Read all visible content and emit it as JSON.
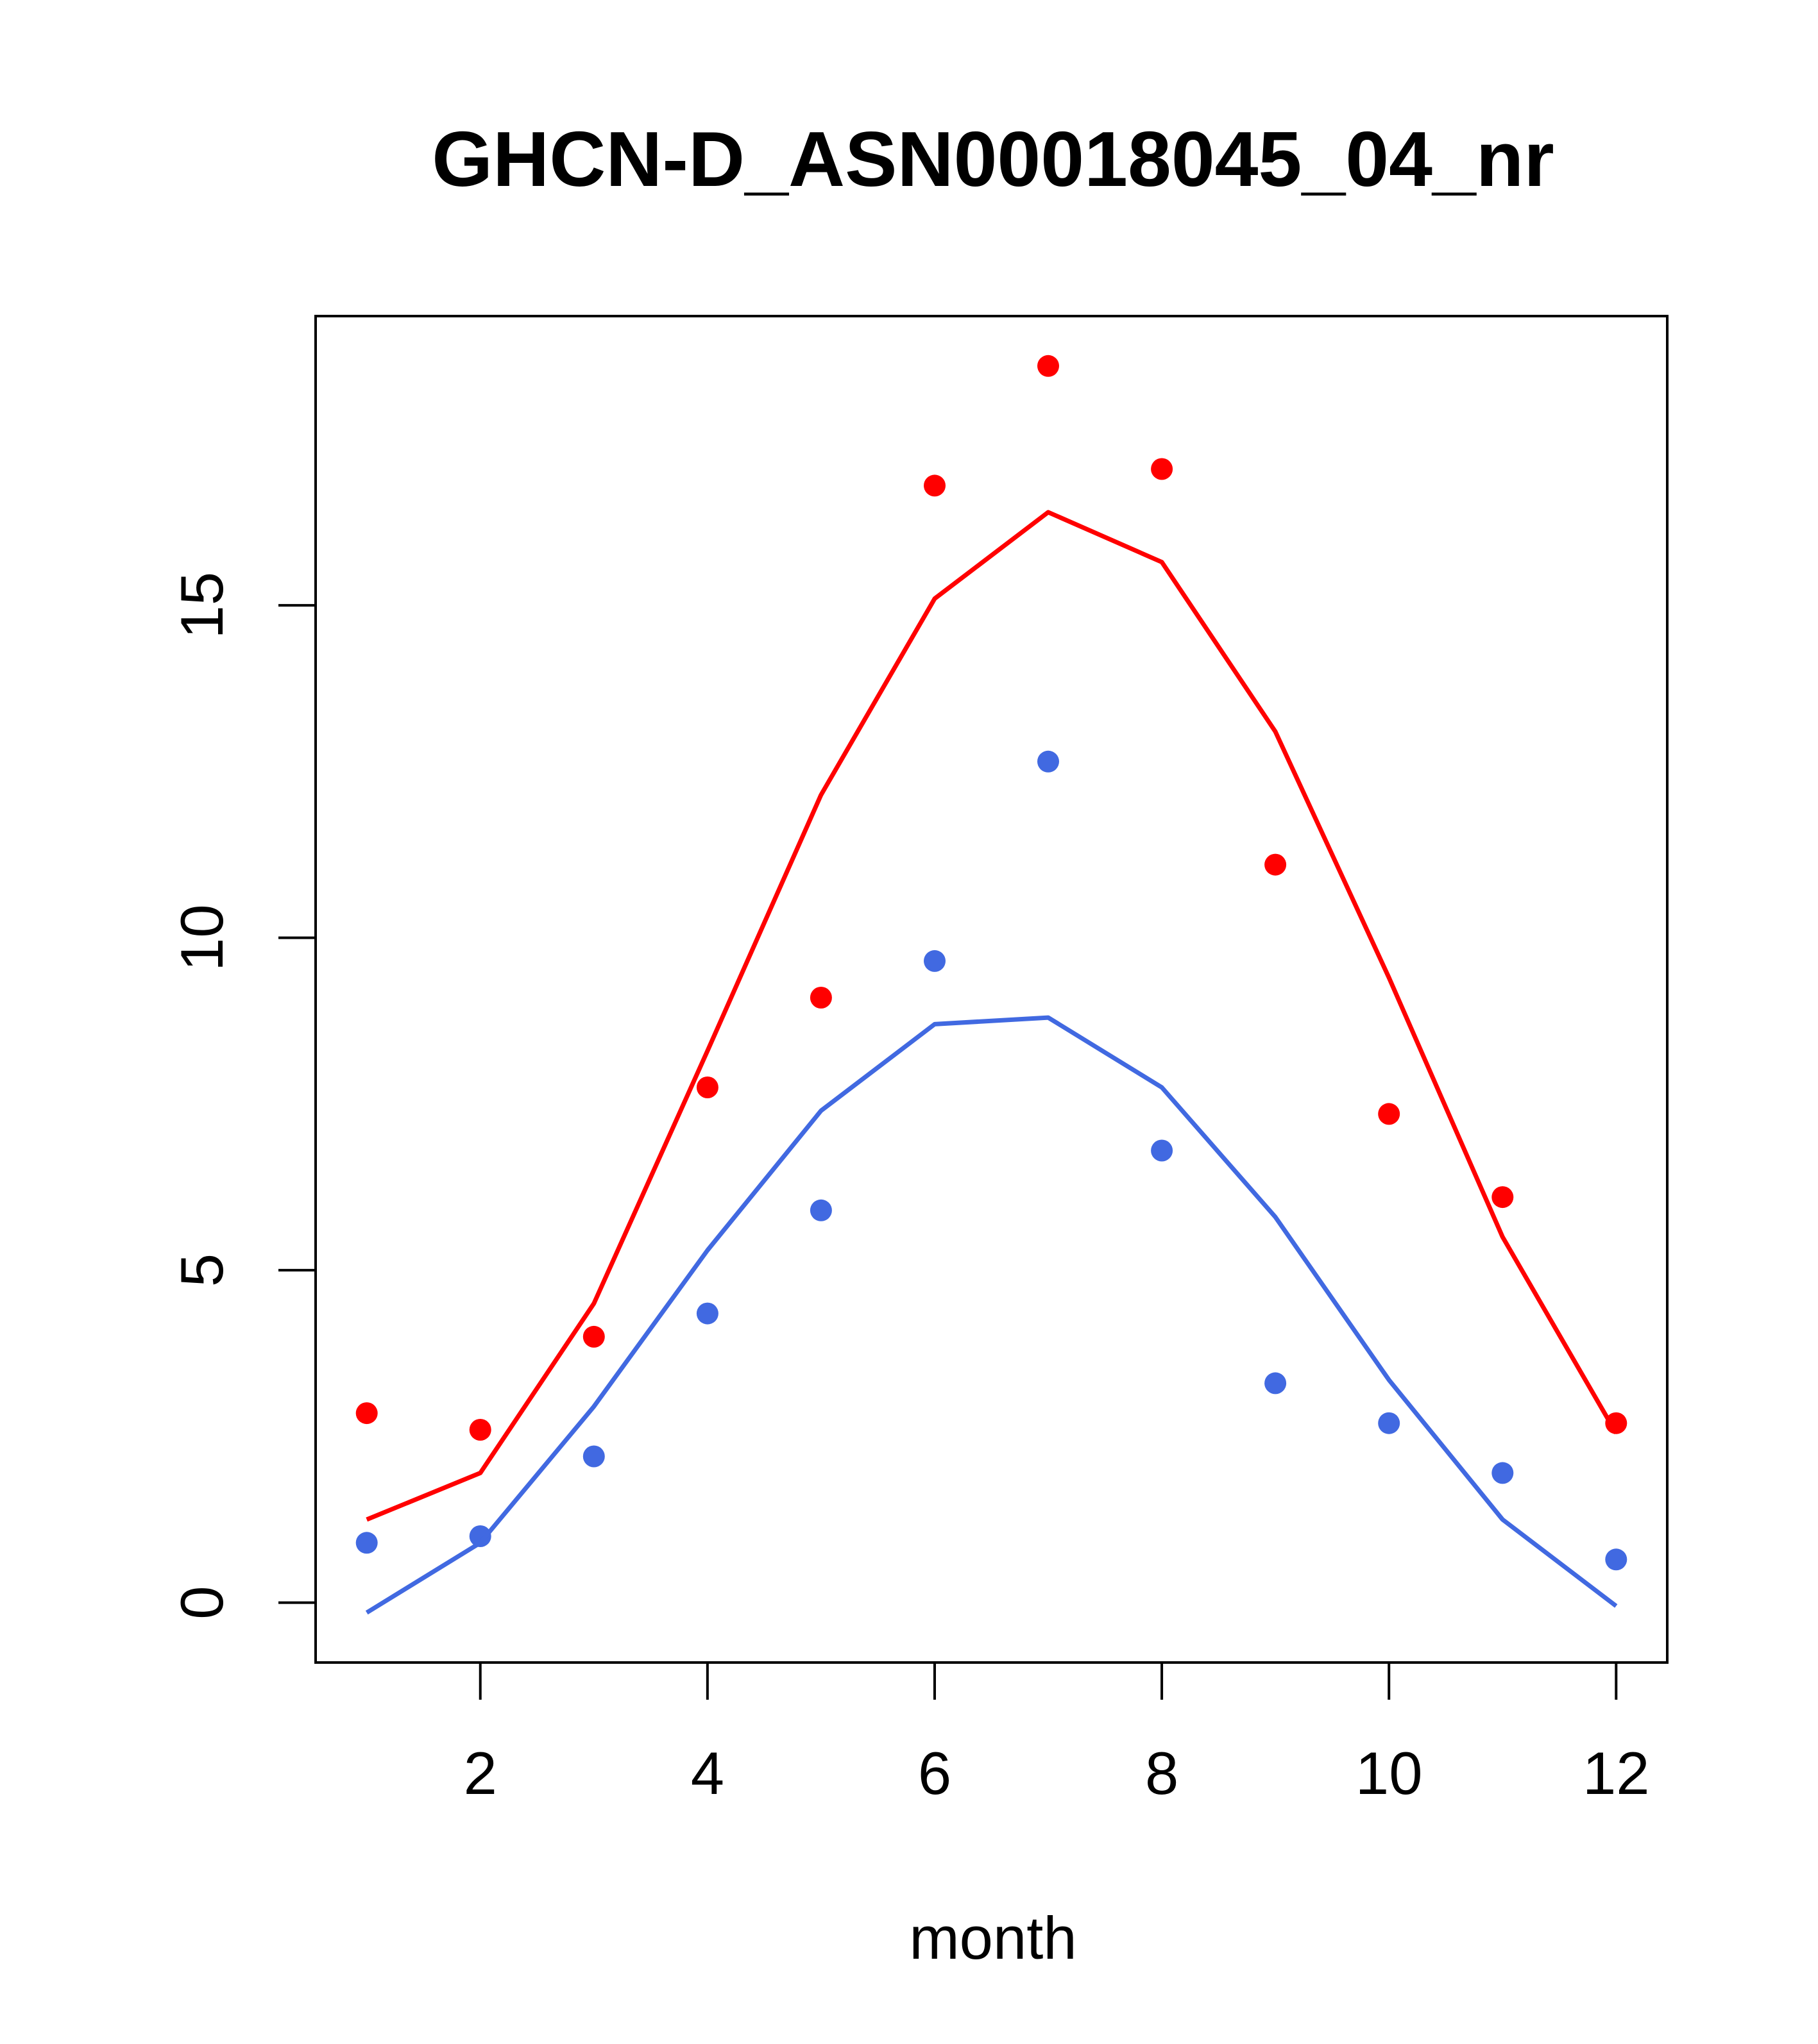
{
  "chart_data": {
    "type": "scatter",
    "title": "GHCN-D_ASN00018045_04_nr",
    "xlabel": "month",
    "ylabel": "",
    "xlim": [
      0.55,
      12.45
    ],
    "ylim": [
      -0.9,
      19.35
    ],
    "xticks": [
      2,
      4,
      6,
      8,
      10,
      12
    ],
    "yticks": [
      0,
      5,
      10,
      15
    ],
    "xtick_labels": [
      "2",
      "4",
      "6",
      "8",
      "10",
      "12"
    ],
    "ytick_labels": [
      "0",
      "5",
      "10",
      "15"
    ],
    "grid": false,
    "x": [
      1,
      2,
      3,
      4,
      5,
      6,
      7,
      8,
      9,
      10,
      11,
      12
    ],
    "series": [
      {
        "mark": "points",
        "color": "#ff0000",
        "values": [
          2.85,
          2.6,
          4.0,
          7.75,
          9.1,
          16.8,
          18.6,
          17.05,
          11.1,
          7.35,
          6.1,
          2.7
        ]
      },
      {
        "mark": "line",
        "color": "#ff0000",
        "values": [
          1.25,
          1.95,
          4.5,
          8.3,
          12.15,
          15.1,
          16.4,
          15.65,
          13.1,
          9.4,
          5.5,
          2.55
        ]
      },
      {
        "mark": "points",
        "color": "#4169e1",
        "values": [
          0.9,
          1.0,
          2.2,
          4.35,
          5.9,
          9.65,
          12.65,
          6.8,
          3.3,
          2.7,
          1.95,
          0.65
        ]
      },
      {
        "mark": "line",
        "color": "#4169e1",
        "values": [
          -0.15,
          0.9,
          2.95,
          5.3,
          7.4,
          8.7,
          8.8,
          7.75,
          5.8,
          3.35,
          1.25,
          -0.05
        ]
      }
    ]
  }
}
